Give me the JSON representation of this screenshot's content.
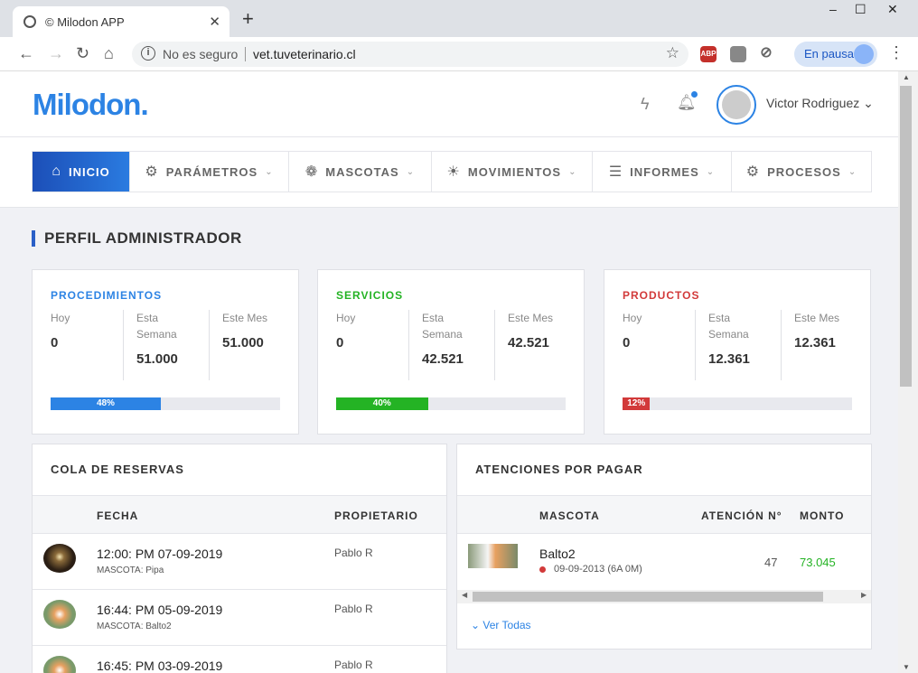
{
  "browser": {
    "tab_title": "© Milodon APP",
    "tab_close": "✕",
    "new_tab": "+",
    "security": "No es seguro",
    "url": "vet.tuveterinario.cl",
    "profile_status": "En pausa",
    "window_controls": [
      "–",
      "☐",
      "✕"
    ],
    "ext_abp": "ABP"
  },
  "header": {
    "logo": "Milodon.",
    "user_name": "Victor Rodriguez",
    "accent_color": "#2c83e4"
  },
  "nav": {
    "items": [
      {
        "label": "INICIO",
        "icon": "home-icon",
        "active": true
      },
      {
        "label": "PARÁMETROS",
        "icon": "gear-icon"
      },
      {
        "label": "MASCOTAS",
        "icon": "paw-icon"
      },
      {
        "label": "MOVIMIENTOS",
        "icon": "sun-icon"
      },
      {
        "label": "INFORMES",
        "icon": "list-icon"
      },
      {
        "label": "PROCESOS",
        "icon": "cog-icon"
      }
    ]
  },
  "page": {
    "title": "PERFIL ADMINISTRADOR"
  },
  "stats": [
    {
      "label": "PROCEDIMIENTOS",
      "color": "#2c83e4",
      "hoy_label": "Hoy",
      "hoy": "0",
      "semana_label": "Esta Semana",
      "semana": "51.000",
      "mes_label": "Este Mes",
      "mes": "51.000",
      "progress": "48%",
      "progress_value": 0.48
    },
    {
      "label": "SERVICIOS",
      "color": "#24b324",
      "hoy_label": "Hoy",
      "hoy": "0",
      "semana_label": "Esta Semana",
      "semana": "42.521",
      "mes_label": "Este Mes",
      "mes": "42.521",
      "progress": "40%",
      "progress_value": 0.4
    },
    {
      "label": "PRODUCTOS",
      "color": "#d23a3a",
      "hoy_label": "Hoy",
      "hoy": "0",
      "semana_label": "Esta Semana",
      "semana": "12.361",
      "mes_label": "Este Mes",
      "mes": "12.361",
      "progress": "12%",
      "progress_value": 0.12
    }
  ],
  "reservas": {
    "title": "COLA DE RESERVAS",
    "col_fecha": "FECHA",
    "col_propietario": "PROPIETARIO",
    "rows": [
      {
        "fecha": "12:00: PM 07-09-2019",
        "mascota": "MASCOTA: Pipa",
        "propietario": "Pablo R"
      },
      {
        "fecha": "16:44: PM 05-09-2019",
        "mascota": "MASCOTA: Balto2",
        "propietario": "Pablo R"
      },
      {
        "fecha": "16:45: PM 03-09-2019",
        "mascota": "",
        "propietario": "Pablo R"
      }
    ]
  },
  "atenciones": {
    "title": "ATENCIONES POR PAGAR",
    "col_mascota": "MASCOTA",
    "col_atencion": "ATENCIÓN N°",
    "col_monto": "MONTO",
    "rows": [
      {
        "mascota": "Balto2",
        "fecha": "09-09-2013 (6A 0M)",
        "atencion": "47",
        "monto": "73.045"
      }
    ],
    "ver_todas": "Ver Todas"
  }
}
